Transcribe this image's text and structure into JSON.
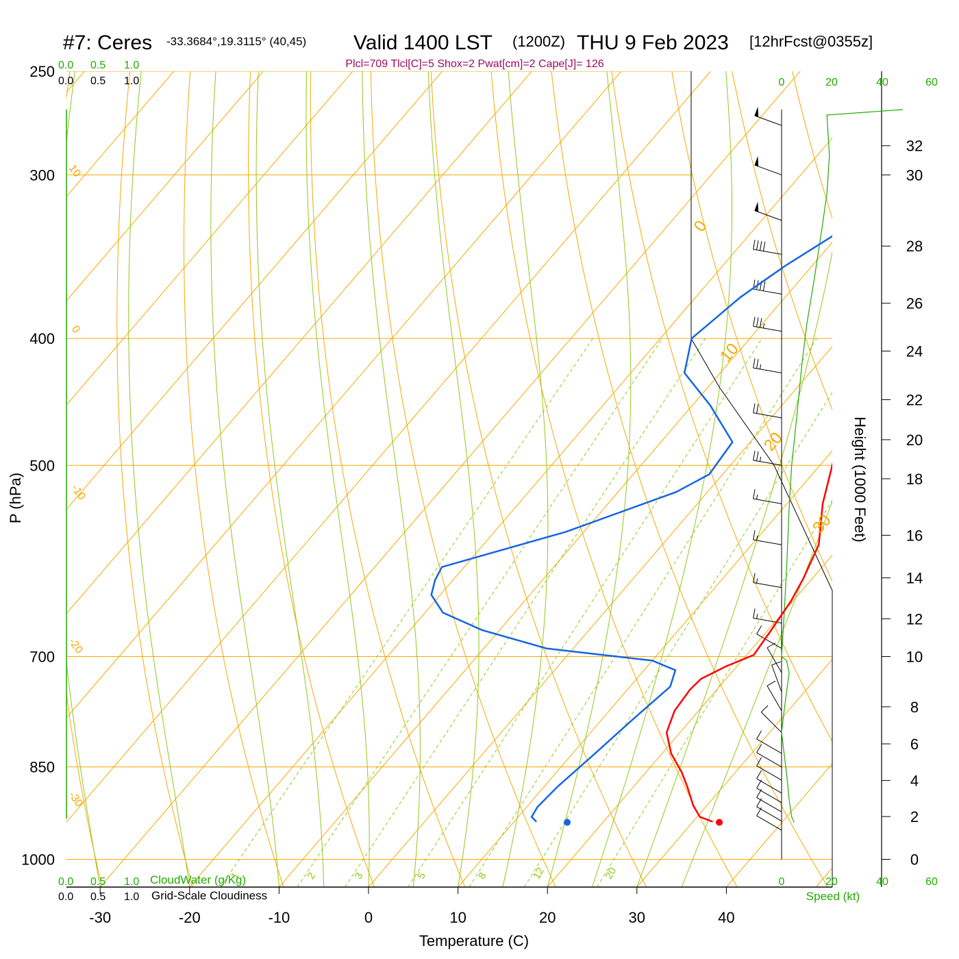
{
  "header": {
    "station": "#7: Ceres",
    "coords": "-33.3684°,19.3115° (40,45)",
    "valid": "Valid 1400 LST",
    "utc": "(1200Z)",
    "date": "THU 9 Feb 2023",
    "forecast": "[12hrFcst@0355z]",
    "indices": "Plcl=709 Tlcl[C]=5 Shox=2 Pwat[cm]=2 Cape[J]= 126"
  },
  "colors": {
    "temperature": "#ff0000",
    "dewpoint": "#1565e0",
    "parcel": "#6a0a55",
    "isotherm": "#f5a800",
    "dry_adiabat": "#f5a800",
    "moist_adiabat": "#8fc81a",
    "mixing_ratio": "#8fc81a",
    "green_text": "#22aa00",
    "index_text": "#9c0a60"
  },
  "chart_data": {
    "type": "line",
    "title": "#7: Ceres",
    "xlabel": "Temperature (C)",
    "ylabel": "P (hPa)",
    "y2label": "Height (1000 Feet)",
    "xlim": [
      -34,
      36
    ],
    "ylim": [
      1050,
      250
    ],
    "y_scale": "log",
    "x_ticks": [
      -30,
      -20,
      -10,
      0,
      10,
      20,
      30,
      40
    ],
    "pressure_ticks": [
      250,
      300,
      400,
      500,
      700,
      850,
      1000
    ],
    "height_ticks": [
      0,
      2,
      4,
      6,
      8,
      10,
      12,
      14,
      16,
      18,
      20,
      22,
      24,
      26,
      28,
      30,
      32
    ],
    "height_tick_pressures": [
      1000,
      927.5,
      870.5,
      816.2,
      764.7,
      700,
      655,
      609.5,
      565.5,
      512,
      478,
      445.5,
      409,
      376,
      340,
      300,
      285
    ],
    "cloud_scale_top": {
      "label": "",
      "ticks": [
        "0.0",
        "0.5",
        "1.0"
      ]
    },
    "cloud_scale_bottom": {
      "label": "CloudWater (g/Kg)",
      "ticks": [
        "0.0",
        "0.5",
        "1.0"
      ]
    },
    "cloudiness_label": "Grid-Scale Cloudiness",
    "speed_label": "Speed (kt)",
    "speed_ticks": [
      "0",
      "20",
      "40",
      "60"
    ],
    "dry_adiabat_labels": [
      "0",
      "10",
      "20",
      "30"
    ],
    "moist_adiabat_labels": [
      "10",
      "0",
      "-10",
      "-20",
      "-30"
    ],
    "mixing_ratio_labels": [
      "1",
      "2",
      "3",
      "5",
      "8",
      "12",
      "20"
    ],
    "series": [
      {
        "key": "temperature",
        "points": [
          [
            32.2,
            936
          ],
          [
            30.3,
            928
          ],
          [
            28.5,
            910
          ],
          [
            26.0,
            880
          ],
          [
            24.0,
            858
          ],
          [
            21.0,
            830
          ],
          [
            18.5,
            800
          ],
          [
            17.3,
            770
          ],
          [
            17.0,
            742
          ],
          [
            17.2,
            728
          ],
          [
            18.8,
            712
          ],
          [
            20.8,
            698
          ],
          [
            20.4,
            670
          ],
          [
            19.8,
            635
          ],
          [
            19.0,
            610
          ],
          [
            17.5,
            575
          ],
          [
            14.0,
            535
          ],
          [
            11.0,
            495
          ],
          [
            8.0,
            457
          ],
          [
            6.0,
            428
          ],
          [
            3.0,
            395
          ],
          [
            1.0,
            371
          ],
          [
            -0.5,
            348
          ],
          [
            -1.0,
            330
          ],
          [
            -1.3,
            310
          ],
          [
            -2.5,
            292
          ],
          [
            -4.0,
            275
          ]
        ],
        "surface_marker": [
          33.0,
          937
        ]
      },
      {
        "key": "dewpoint",
        "points": [
          [
            12.5,
            936
          ],
          [
            11.5,
            928
          ],
          [
            11.2,
            912
          ],
          [
            11.5,
            880
          ],
          [
            12.5,
            830
          ],
          [
            13.5,
            780
          ],
          [
            14.5,
            738
          ],
          [
            13.5,
            717
          ],
          [
            10.0,
            705
          ],
          [
            -3.0,
            690
          ],
          [
            -12.0,
            668
          ],
          [
            -18.0,
            648
          ],
          [
            -21.0,
            628
          ],
          [
            -22.0,
            612
          ],
          [
            -22.5,
            598
          ],
          [
            -12.0,
            562
          ],
          [
            -3.5,
            524
          ],
          [
            -1.5,
            508
          ],
          [
            -2.0,
            480
          ],
          [
            -8.0,
            450
          ],
          [
            -14.0,
            425
          ],
          [
            -16.5,
            400
          ],
          [
            -15.0,
            372
          ],
          [
            -13.0,
            352
          ],
          [
            -10.0,
            330
          ],
          [
            -8.0,
            300
          ],
          [
            -7.5,
            292
          ],
          [
            -7.0,
            275
          ]
        ],
        "surface_marker": [
          16.0,
          937
        ]
      },
      {
        "key": "parcel",
        "points": [
          [
            14.5,
            518
          ],
          [
            12.0,
            470
          ],
          [
            9.0,
            430
          ],
          [
            5.5,
            392
          ],
          [
            3.0,
            370
          ],
          [
            1.5,
            355
          ]
        ]
      }
    ],
    "wind_barbs": [
      {
        "pressure": 275,
        "direction_deg": 290,
        "speed_kt": 50
      },
      {
        "pressure": 300,
        "direction_deg": 290,
        "speed_kt": 50
      },
      {
        "pressure": 325,
        "direction_deg": 290,
        "speed_kt": 50
      },
      {
        "pressure": 345,
        "direction_deg": 280,
        "speed_kt": 40
      },
      {
        "pressure": 370,
        "direction_deg": 280,
        "speed_kt": 40
      },
      {
        "pressure": 395,
        "direction_deg": 280,
        "speed_kt": 35
      },
      {
        "pressure": 425,
        "direction_deg": 280,
        "speed_kt": 25
      },
      {
        "pressure": 460,
        "direction_deg": 280,
        "speed_kt": 20
      },
      {
        "pressure": 500,
        "direction_deg": 280,
        "speed_kt": 25
      },
      {
        "pressure": 535,
        "direction_deg": 280,
        "speed_kt": 15
      },
      {
        "pressure": 575,
        "direction_deg": 280,
        "speed_kt": 15
      },
      {
        "pressure": 620,
        "direction_deg": 280,
        "speed_kt": 15
      },
      {
        "pressure": 660,
        "direction_deg": 280,
        "speed_kt": 15
      },
      {
        "pressure": 690,
        "direction_deg": 300,
        "speed_kt": 10
      },
      {
        "pressure": 720,
        "direction_deg": 330,
        "speed_kt": 10
      },
      {
        "pressure": 745,
        "direction_deg": 340,
        "speed_kt": 10
      },
      {
        "pressure": 770,
        "direction_deg": 330,
        "speed_kt": 10
      },
      {
        "pressure": 800,
        "direction_deg": 315,
        "speed_kt": 10
      },
      {
        "pressure": 830,
        "direction_deg": 300,
        "speed_kt": 10
      },
      {
        "pressure": 850,
        "direction_deg": 300,
        "speed_kt": 10
      },
      {
        "pressure": 870,
        "direction_deg": 300,
        "speed_kt": 10
      },
      {
        "pressure": 890,
        "direction_deg": 300,
        "speed_kt": 10
      },
      {
        "pressure": 905,
        "direction_deg": 300,
        "speed_kt": 10
      },
      {
        "pressure": 920,
        "direction_deg": 300,
        "speed_kt": 10
      },
      {
        "pressure": 935,
        "direction_deg": 300,
        "speed_kt": 10
      },
      {
        "pressure": 950,
        "direction_deg": 300,
        "speed_kt": 10
      }
    ],
    "wind_speed_profile": [
      [
        5,
        937
      ],
      [
        4,
        928
      ],
      [
        3,
        900
      ],
      [
        2,
        860
      ],
      [
        1,
        830
      ],
      [
        0,
        800
      ],
      [
        1,
        770
      ],
      [
        2,
        745
      ],
      [
        3,
        720
      ],
      [
        2,
        705
      ],
      [
        0,
        700
      ],
      [
        1,
        650
      ],
      [
        2,
        600
      ],
      [
        3,
        540
      ],
      [
        4,
        500
      ],
      [
        6,
        460
      ],
      [
        8,
        420
      ],
      [
        10,
        390
      ],
      [
        13,
        360
      ],
      [
        16,
        330
      ],
      [
        18,
        310
      ],
      [
        19,
        290
      ],
      [
        18,
        270
      ]
    ]
  }
}
